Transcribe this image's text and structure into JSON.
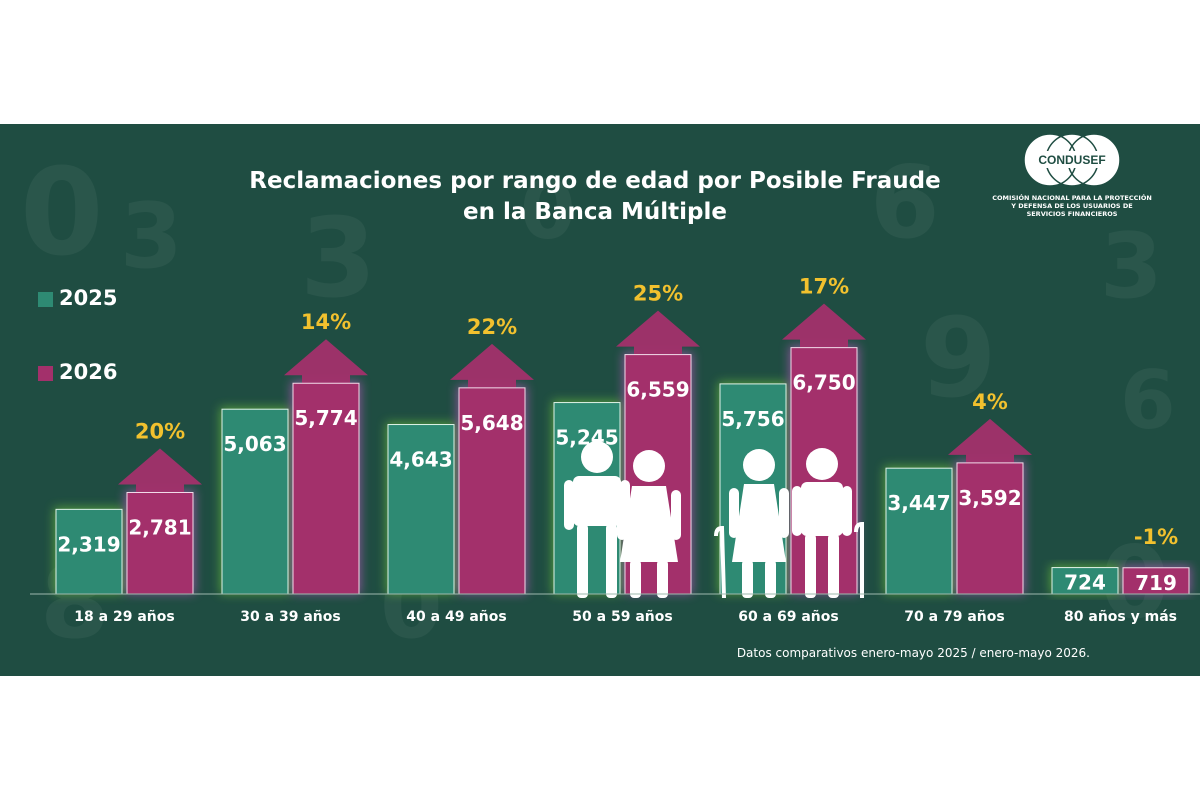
{
  "title_line1": "Reclamaciones por rango de edad por Posible Fraude",
  "title_line2": "en la Banca Múltiple",
  "logo": {
    "name": "CONDUSEF",
    "subtitle_line1": "COMISIÓN NACIONAL PARA LA PROTECCIÓN",
    "subtitle_line2": "Y DEFENSA DE LOS USUARIOS DE",
    "subtitle_line3": "SERVICIOS FINANCIEROS"
  },
  "colors": {
    "background": "#1f4d42",
    "series_2025": "#2e8a73",
    "series_2026": "#a3306b",
    "arrow": "#a3306b",
    "pct_text": "#f2c12e",
    "glow_2025": "#7cd63a",
    "glow_2026": "#d45ad1"
  },
  "chart_data": {
    "type": "bar",
    "categories": [
      "18 a 29 años",
      "30 a 39 años",
      "40 a 49 años",
      "50 a 59 años",
      "60 a 69 años",
      "70 a 79 años",
      "80 años y más"
    ],
    "series": [
      {
        "name": "2025",
        "values": [
          2319,
          5063,
          4643,
          5245,
          5756,
          3447,
          724
        ],
        "labels": [
          "2,319",
          "5,063",
          "4,643",
          "5,245",
          "5,756",
          "3,447",
          "724"
        ]
      },
      {
        "name": "2026",
        "values": [
          2781,
          5774,
          5648,
          6559,
          6750,
          3592,
          719
        ],
        "labels": [
          "2,781",
          "5,774",
          "5,648",
          "6,559",
          "6,750",
          "3,592",
          "719"
        ]
      }
    ],
    "changes": [
      "20%",
      "14%",
      "22%",
      "25%",
      "17%",
      "4%",
      "-1%"
    ],
    "legend_position": "left",
    "grid": false
  },
  "footnote": "Datos comparativos enero-mayo 2025 / enero-mayo 2026."
}
